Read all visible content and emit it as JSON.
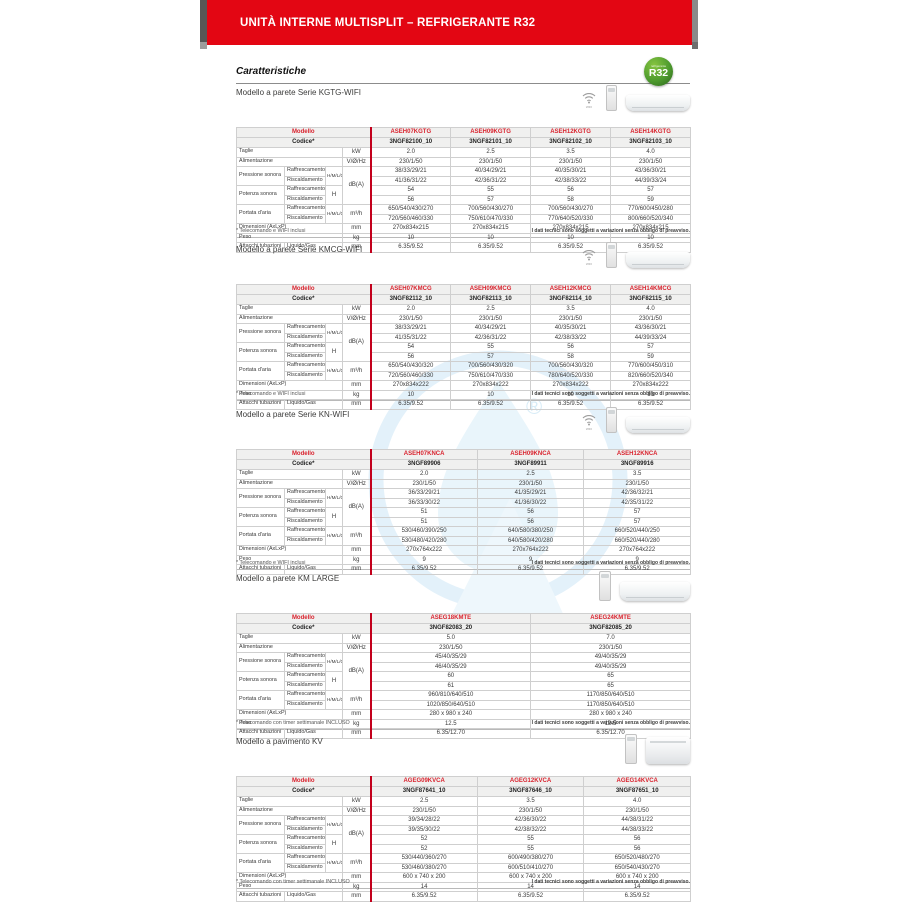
{
  "banner": {
    "title": "UNITÀ INTERNE MULTISPLIT – REFRIGERANTE R32"
  },
  "heading": "Caratteristiche",
  "r32_badge": {
    "line1": "refrigerante",
    "line2": "R32"
  },
  "tech_note": "I dati tecnici sono soggetti a variazioni senza obbligo di preavviso.",
  "colors": {
    "banner_red": "#e30613",
    "accent_red": "#d9232e",
    "badge_green": "#4e9b2e",
    "watermark_blue": "#e3f1fa"
  },
  "row_labels": {
    "modello": "Modello",
    "codice": "Codice*",
    "taglie": "Taglie",
    "taglie_unit": "kW",
    "alimentazione": "Alimentazione",
    "alimentazione_unit": "V/Ø/Hz",
    "pressione": "Pressione sonora",
    "potenza": "Potenza sonora",
    "portata": "Portata d'aria",
    "raffrescamento": "Raffrescamento",
    "riscaldamento": "Riscaldamento",
    "hmlq": "H/M/L/Q",
    "h": "H",
    "db_unit": "dB(A)",
    "portata_unit": "m³/h",
    "dimensioni": "Dimensioni (AxLxP)",
    "dimensioni_unit": "mm",
    "peso": "Peso",
    "peso_unit": "kg",
    "attacchi": "Attacchi tubazioni",
    "liquido_gas": "Liquido/Gas",
    "attacchi_unit": "mm"
  },
  "sections": [
    {
      "title": "Modello a parete Serie KGTG-WIFI",
      "footnote": "* Telecomando e WIFI inclusi",
      "icons": [
        "wifi-icon",
        "remote-icon",
        "wall-unit-image"
      ],
      "models": [
        {
          "name": "ASEH07KGTG",
          "code": "3NGF82100_10"
        },
        {
          "name": "ASEH09KGTG",
          "code": "3NGF82101_10"
        },
        {
          "name": "ASEH12KGTG",
          "code": "3NGF82102_10"
        },
        {
          "name": "ASEH14KGTG",
          "code": "3NGF82103_10"
        }
      ],
      "values": {
        "taglie": [
          "2.0",
          "2.5",
          "3.5",
          "4.0"
        ],
        "alimentazione": [
          "230/1/50",
          "230/1/50",
          "230/1/50",
          "230/1/50"
        ],
        "pressione_raffrescamento": [
          "38/33/29/21",
          "40/34/29/21",
          "40/35/30/21",
          "43/36/30/21"
        ],
        "pressione_riscaldamento": [
          "41/36/31/22",
          "42/36/31/22",
          "42/38/33/22",
          "44/39/33/24"
        ],
        "potenza_raffrescamento": [
          "54",
          "55",
          "56",
          "57"
        ],
        "potenza_riscaldamento": [
          "56",
          "57",
          "58",
          "59"
        ],
        "portata_raffrescamento": [
          "650/540/430/270",
          "700/560/430/270",
          "700/560/430/270",
          "770/600/450/280"
        ],
        "portata_riscaldamento": [
          "720/560/460/330",
          "750/610/470/330",
          "770/640/520/330",
          "800/660/520/340"
        ],
        "dimensioni": [
          "270x834x215",
          "270x834x215",
          "270x834x215",
          "270x834x215"
        ],
        "peso": [
          "10",
          "10",
          "10",
          "10"
        ],
        "attacchi": [
          "6.35/9.52",
          "6.35/9.52",
          "6.35/9.52",
          "6.35/9.52"
        ]
      }
    },
    {
      "title": "Modello a parete Serie KMCG-WIFI",
      "footnote": "* Telecomando e WIFI inclusi",
      "icons": [
        "wifi-icon",
        "remote-icon",
        "wall-unit-image"
      ],
      "models": [
        {
          "name": "ASEH07KMCG",
          "code": "3NGF82112_10"
        },
        {
          "name": "ASEH09KMCG",
          "code": "3NGF82113_10"
        },
        {
          "name": "ASEH12KMCG",
          "code": "3NGF82114_10"
        },
        {
          "name": "ASEH14KMCG",
          "code": "3NGF82115_10"
        }
      ],
      "values": {
        "taglie": [
          "2.0",
          "2.5",
          "3.5",
          "4.0"
        ],
        "alimentazione": [
          "230/1/50",
          "230/1/50",
          "230/1/50",
          "230/1/50"
        ],
        "pressione_raffrescamento": [
          "38/33/29/21",
          "40/34/29/21",
          "40/35/30/21",
          "43/36/30/21"
        ],
        "pressione_riscaldamento": [
          "41/35/31/22",
          "42/36/31/22",
          "42/38/33/22",
          "44/39/33/24"
        ],
        "potenza_raffrescamento": [
          "54",
          "55",
          "56",
          "57"
        ],
        "potenza_riscaldamento": [
          "56",
          "57",
          "58",
          "59"
        ],
        "portata_raffrescamento": [
          "650/540/430/320",
          "700/560/430/320",
          "700/560/430/320",
          "770/600/450/310"
        ],
        "portata_riscaldamento": [
          "720/560/460/330",
          "750/610/470/330",
          "780/640/520/330",
          "820/660/520/340"
        ],
        "dimensioni": [
          "270x834x222",
          "270x834x222",
          "270x834x222",
          "270x834x222"
        ],
        "peso": [
          "10",
          "10",
          "10",
          "10"
        ],
        "attacchi": [
          "6.35/9.52",
          "6.35/9.52",
          "6.35/9.52",
          "6.35/9.52"
        ]
      }
    },
    {
      "title": "Modello a parete Serie KN-WIFI",
      "footnote": "* Telecomando e WIFI inclusi",
      "icons": [
        "wifi-icon",
        "remote-icon",
        "wall-unit-image"
      ],
      "models": [
        {
          "name": "ASEH07KNCA",
          "code": "3NGF89906"
        },
        {
          "name": "ASEH09KNCA",
          "code": "3NGF89911"
        },
        {
          "name": "ASEH12KNCA",
          "code": "3NGF89916"
        }
      ],
      "values": {
        "taglie": [
          "2.0",
          "2.5",
          "3.5"
        ],
        "alimentazione": [
          "230/1/50",
          "230/1/50",
          "230/1/50"
        ],
        "pressione_raffrescamento": [
          "36/33/29/21",
          "41/35/29/21",
          "42/36/32/21"
        ],
        "pressione_riscaldamento": [
          "36/33/30/22",
          "41/36/30/22",
          "42/35/31/22"
        ],
        "potenza_raffrescamento": [
          "51",
          "56",
          "57"
        ],
        "potenza_riscaldamento": [
          "51",
          "56",
          "57"
        ],
        "portata_raffrescamento": [
          "530/460/390/250",
          "640/580/380/250",
          "660/520/440/250"
        ],
        "portata_riscaldamento": [
          "530/480/420/280",
          "640/580/420/280",
          "660/520/440/280"
        ],
        "dimensioni": [
          "270x764x222",
          "270x764x222",
          "270x764x222"
        ],
        "peso": [
          "9",
          "9",
          "9"
        ],
        "attacchi": [
          "6.35/9.52",
          "6.35/9.52",
          "6.35/9.52"
        ]
      }
    },
    {
      "title": "Modello a parete KM LARGE",
      "footnote": "* Telecomando con timer settimanale INCLUSO",
      "icons": [
        "remote-icon",
        "wall-unit-image"
      ],
      "models": [
        {
          "name": "ASEG18KMTE",
          "code": "3NGF82083_20"
        },
        {
          "name": "ASEG24KMTE",
          "code": "3NGF82085_20"
        }
      ],
      "values": {
        "taglie": [
          "5.0",
          "7.0"
        ],
        "alimentazione": [
          "230/1/50",
          "230/1/50"
        ],
        "pressione_raffrescamento": [
          "45/40/35/29",
          "49/40/35/29"
        ],
        "pressione_riscaldamento": [
          "46/40/35/29",
          "49/40/35/29"
        ],
        "potenza_raffrescamento": [
          "60",
          "65"
        ],
        "potenza_riscaldamento": [
          "61",
          "65"
        ],
        "portata_raffrescamento": [
          "960/810/640/510",
          "1170/850/640/510"
        ],
        "portata_riscaldamento": [
          "1020/850/640/510",
          "1170/850/640/510"
        ],
        "dimensioni": [
          "280 x 980 x 240",
          "280 x 980 x 240"
        ],
        "peso": [
          "12.5",
          "12.5"
        ],
        "attacchi": [
          "6.35/12.70",
          "6.35/12.70"
        ]
      }
    },
    {
      "title": "Modello a pavimento KV",
      "footnote": "* Telecomando con timer settimanale INCLUSO",
      "icons": [
        "remote-icon",
        "floor-unit-image"
      ],
      "models": [
        {
          "name": "AGEG09KVCA",
          "code": "3NGF87641_10"
        },
        {
          "name": "AGEG12KVCA",
          "code": "3NGF87646_10"
        },
        {
          "name": "AGEG14KVCA",
          "code": "3NGF87651_10"
        }
      ],
      "values": {
        "taglie": [
          "2.5",
          "3.5",
          "4.0"
        ],
        "alimentazione": [
          "230/1/50",
          "230/1/50",
          "230/1/50"
        ],
        "pressione_raffrescamento": [
          "39/34/28/22",
          "42/36/30/22",
          "44/38/31/22"
        ],
        "pressione_riscaldamento": [
          "39/35/30/22",
          "42/38/32/22",
          "44/38/33/22"
        ],
        "potenza_raffrescamento": [
          "52",
          "55",
          "56"
        ],
        "potenza_riscaldamento": [
          "52",
          "55",
          "56"
        ],
        "portata_raffrescamento": [
          "530/440/360/270",
          "600/490/380/270",
          "650/520/480/270"
        ],
        "portata_riscaldamento": [
          "530/460/380/270",
          "600/510/410/270",
          "650/540/430/270"
        ],
        "dimensioni": [
          "600 x 740 x 200",
          "600 x 740 x 200",
          "600 x 740 x 200"
        ],
        "peso": [
          "14",
          "14",
          "14"
        ],
        "attacchi": [
          "6.35/9.52",
          "6.35/9.52",
          "6.35/9.52"
        ]
      }
    }
  ]
}
